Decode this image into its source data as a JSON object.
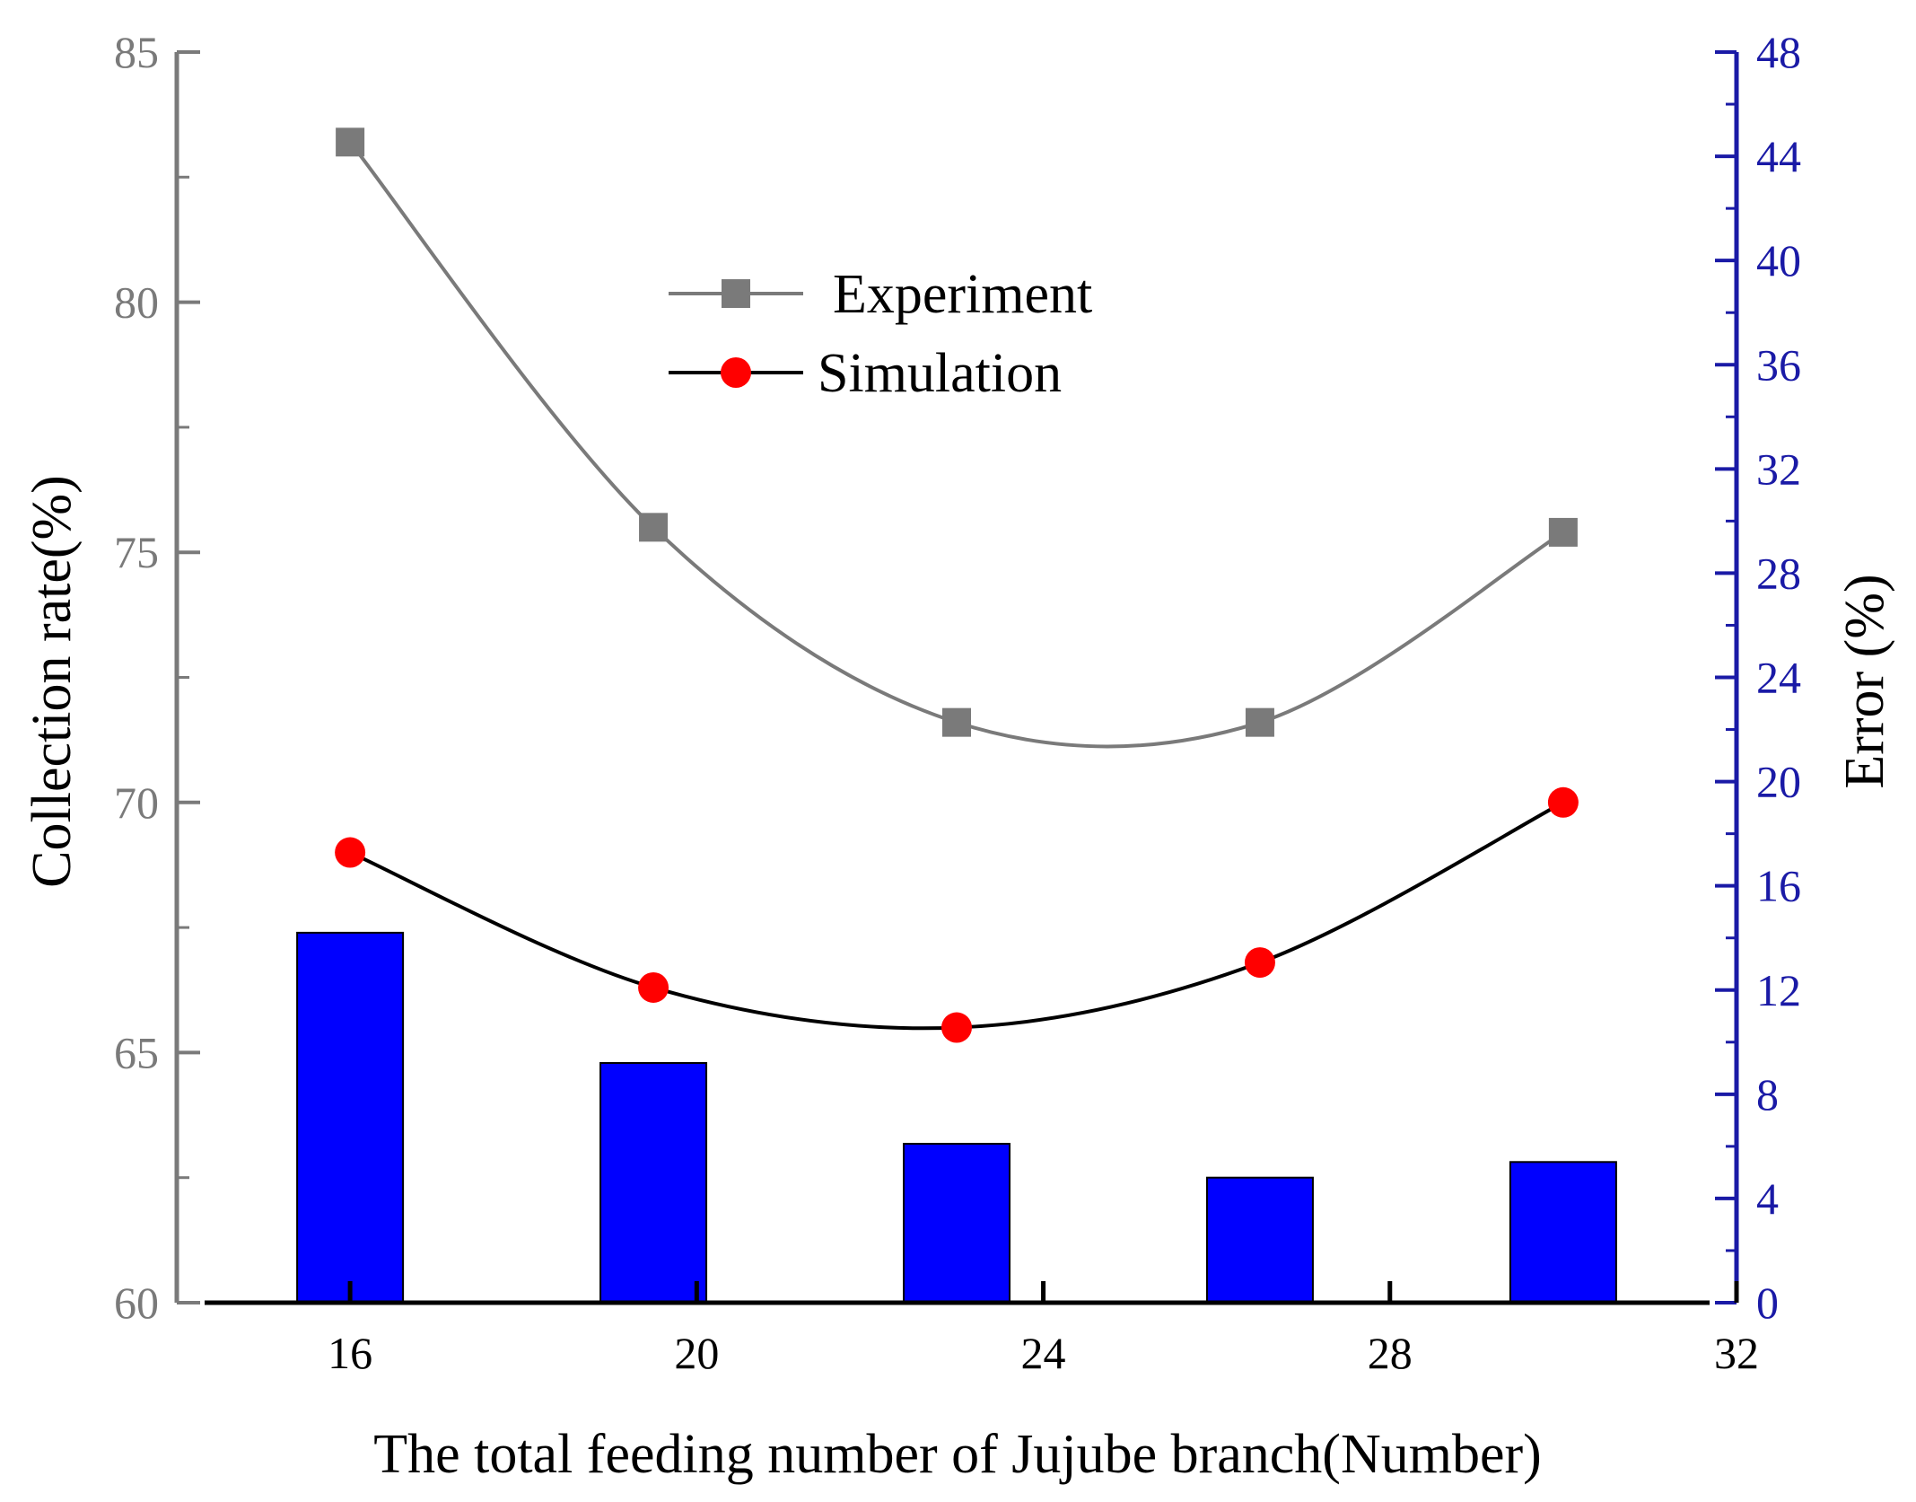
{
  "chart_data": {
    "type": "bar+line",
    "xlabel": "The total  feeding number of Jujube  branch(Number)",
    "ylabel_left": "Collection rate(%)",
    "ylabel_right": "Error (%)",
    "xlim": [
      14,
      32
    ],
    "ylim_left": [
      60,
      85
    ],
    "ylim_right": [
      0,
      48
    ],
    "x_ticks": [
      "16",
      "20",
      "24",
      "28",
      "32"
    ],
    "y_left_ticks": [
      "60",
      "65",
      "70",
      "75",
      "80",
      "85"
    ],
    "y_right_ticks": [
      "0",
      "4",
      "8",
      "12",
      "16",
      "20",
      "24",
      "28",
      "32",
      "36",
      "40",
      "44",
      "48"
    ],
    "x": [
      16,
      19.5,
      23,
      26.5,
      30
    ],
    "series": [
      {
        "name": "Experiment",
        "axis": "left",
        "marker": "square",
        "color": "#7a7a7a",
        "values": [
          83.2,
          75.5,
          71.6,
          71.6,
          75.4
        ]
      },
      {
        "name": "Simulation",
        "axis": "left",
        "marker": "circle",
        "color": "#ff0000",
        "line_color": "#000000",
        "values": [
          69.0,
          66.3,
          65.5,
          66.8,
          70.0
        ]
      },
      {
        "axis": "right",
        "kind": "bar",
        "color": "#0000ff",
        "values": [
          14.2,
          9.2,
          6.1,
          4.8,
          5.4
        ]
      }
    ],
    "legend": [
      "Experiment",
      "Simulation"
    ],
    "legend_position": "top-center",
    "grid": false,
    "colors": {
      "left_axis": "#7a7a7a",
      "right_axis": "#1a1aa6",
      "bars": "#0000ff",
      "experiment": "#7a7a7a",
      "simulation_marker": "#ff0000",
      "simulation_line": "#000000"
    }
  }
}
